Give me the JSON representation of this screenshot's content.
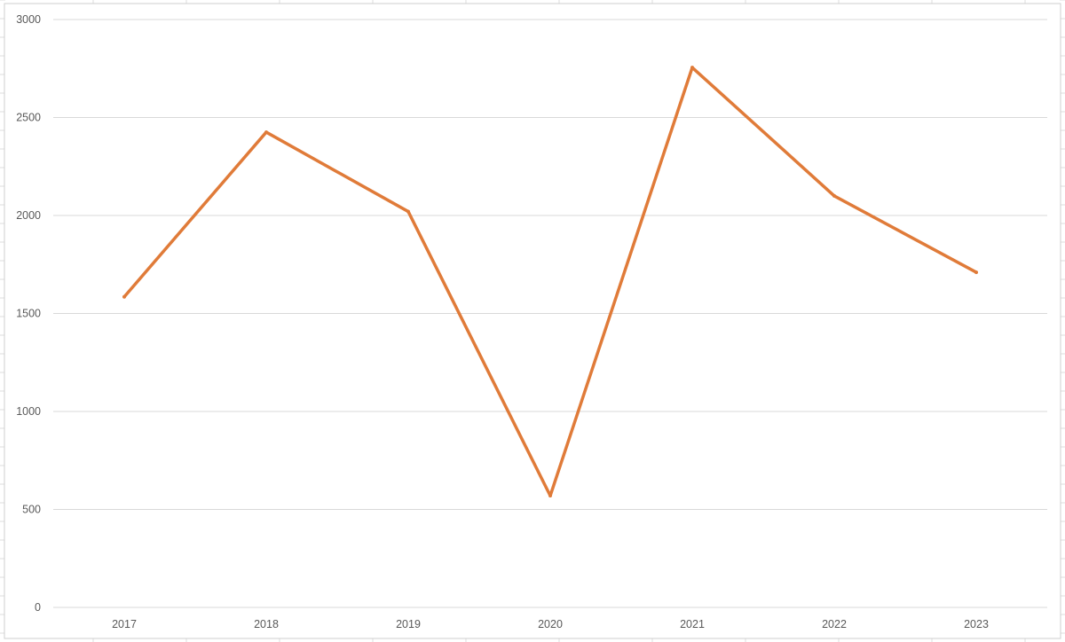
{
  "chart_data": {
    "type": "line",
    "title": "",
    "xlabel": "",
    "ylabel": "",
    "categories": [
      "2017",
      "2018",
      "2019",
      "2020",
      "2021",
      "2022",
      "2023"
    ],
    "series": [
      {
        "values": [
          1585,
          2425,
          2020,
          570,
          2755,
          2100,
          1710
        ]
      }
    ],
    "ylim": [
      0,
      3000
    ],
    "yticks": [
      0,
      500,
      1000,
      1500,
      2000,
      2500,
      3000
    ],
    "grid": true,
    "legend": "none",
    "colors": {
      "series": "#E07B39",
      "gridline": "#D9D9D9",
      "tick_label": "#595959"
    }
  }
}
